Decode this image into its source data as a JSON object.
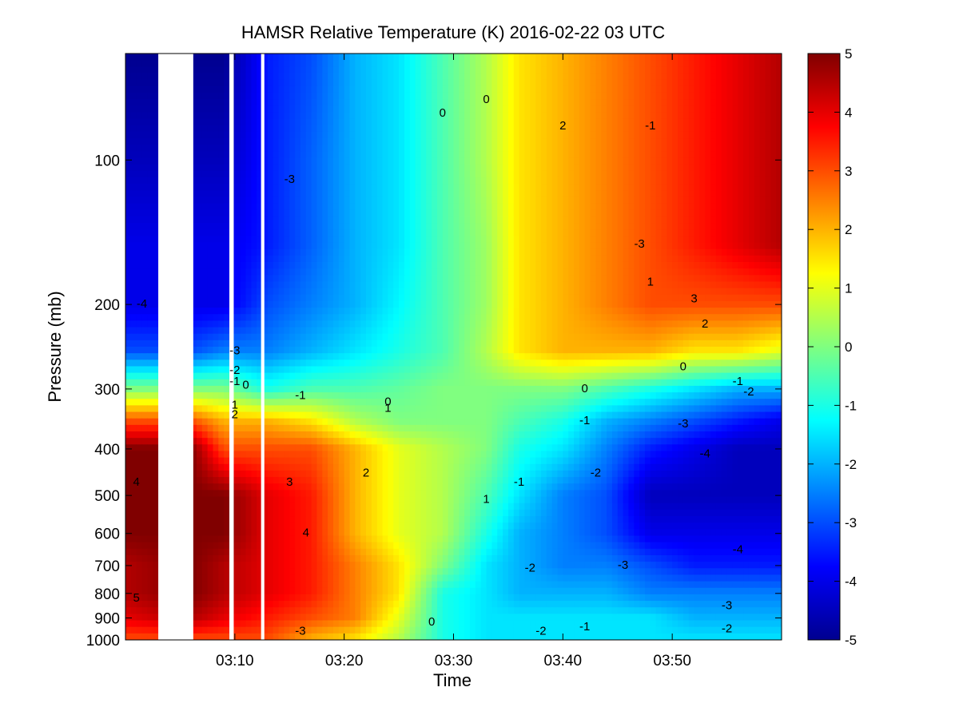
{
  "chart_data": {
    "type": "heatmap",
    "title": "HAMSR  Relative Temperature (K) 2016-02-22 03 UTC",
    "xlabel": "Time",
    "ylabel": "Pressure (mb)",
    "x_tick_labels": [
      "03:10",
      "03:20",
      "03:30",
      "03:40",
      "03:50"
    ],
    "x_tick_minutes": [
      10,
      20,
      30,
      40,
      50
    ],
    "xlim_minutes": [
      0,
      60
    ],
    "y_scale": "log",
    "y_reversed": true,
    "ylim": [
      60,
      1000
    ],
    "y_tick_labels": [
      "100",
      "200",
      "300",
      "400",
      "500",
      "600",
      "700",
      "800",
      "900",
      "1000"
    ],
    "y_tick_values": [
      100,
      200,
      300,
      400,
      500,
      600,
      700,
      800,
      900,
      1000
    ],
    "colorbar": {
      "range": [
        -5,
        5
      ],
      "tick_labels": [
        "5",
        "4",
        "3",
        "2",
        "1",
        "0",
        "-1",
        "-2",
        "-3",
        "-4",
        "-5"
      ],
      "tick_values": [
        5,
        4,
        3,
        2,
        1,
        0,
        -1,
        -2,
        -3,
        -4,
        -5
      ],
      "colormap": "jet",
      "stops": [
        "#00008f",
        "#0000ff",
        "#00ffff",
        "#ffff00",
        "#ff0000",
        "#800000"
      ]
    },
    "data_gaps_minutes": [
      [
        3,
        6.2
      ],
      [
        9.5,
        9.9
      ],
      [
        12.4,
        12.7
      ]
    ],
    "field": {
      "pressure_levels": [
        60,
        100,
        150,
        200,
        250,
        300,
        350,
        400,
        500,
        600,
        700,
        800,
        900,
        1000
      ],
      "time_minutes": [
        0,
        6,
        9,
        13,
        17,
        21,
        25,
        29,
        33,
        36,
        40,
        44,
        48,
        52,
        56,
        60
      ],
      "relative_temperature_K": [
        [
          -5,
          -5,
          -5,
          -3.5,
          -3,
          -2,
          -1.5,
          -0.5,
          0.5,
          1.5,
          2,
          2.5,
          3,
          3.5,
          4,
          4.5
        ],
        [
          -4.5,
          -4.5,
          -4.5,
          -3.5,
          -2.8,
          -2,
          -1.5,
          -0.5,
          0.5,
          1.5,
          2,
          2.5,
          3,
          3.5,
          4,
          4.5
        ],
        [
          -4,
          -4,
          -4,
          -3.5,
          -2.8,
          -2,
          -1.5,
          -0.5,
          0.3,
          1.5,
          2,
          2.5,
          3,
          3.5,
          4,
          4.5
        ],
        [
          -4,
          -4,
          -4,
          -3,
          -2.5,
          -2,
          -1.3,
          -0.5,
          0.3,
          1.5,
          2,
          2.5,
          3,
          3,
          3,
          3
        ],
        [
          -3,
          -3,
          -2.5,
          -2.5,
          -2,
          -1.5,
          -1,
          -0.5,
          0.5,
          1.5,
          2,
          2,
          2,
          1.5,
          1.5,
          1
        ],
        [
          0,
          0,
          0,
          -1,
          -0.5,
          -0.5,
          -0.3,
          0,
          0,
          0,
          0,
          -0.5,
          -1,
          -1.5,
          -2,
          -2
        ],
        [
          3,
          3,
          2,
          2,
          1.5,
          0.5,
          0,
          0,
          0,
          -0.5,
          -1,
          -2,
          -2.5,
          -3,
          -3.5,
          -4
        ],
        [
          5,
          5,
          3,
          3,
          3,
          2,
          1,
          0.5,
          0,
          -1,
          -1.5,
          -2.5,
          -3.5,
          -4,
          -4.5,
          -4.5
        ],
        [
          5,
          5,
          5,
          4,
          3.5,
          2,
          1,
          0.5,
          -0.5,
          -1.5,
          -2.5,
          -3,
          -4.5,
          -4.5,
          -4.5,
          -4.5
        ],
        [
          5,
          5,
          5,
          4,
          3.5,
          2,
          1,
          0.5,
          -1,
          -2,
          -2.5,
          -3,
          -4,
          -4,
          -4,
          -4
        ],
        [
          4.5,
          5,
          4.5,
          4,
          3.5,
          2.5,
          1.5,
          0,
          -1.5,
          -2,
          -2.5,
          -2.5,
          -3,
          -3.5,
          -3.5,
          -3.5
        ],
        [
          4.5,
          5,
          4.5,
          4,
          3.5,
          2.5,
          1.5,
          -1,
          -1.5,
          -2,
          -2,
          -2,
          -2.5,
          -2.5,
          -2.5,
          -2.5
        ],
        [
          4,
          4.5,
          4,
          3.5,
          3,
          2.5,
          1,
          -1,
          -1.5,
          -1.5,
          -1.5,
          -1.5,
          -1.5,
          -2,
          -2,
          -2
        ],
        [
          3,
          3,
          3,
          3,
          2,
          1.5,
          0.5,
          -1,
          -1.5,
          -1.5,
          -1.5,
          -1.5,
          -1.5,
          -1.5,
          -1.5,
          -1.5
        ]
      ]
    },
    "contour_labels": [
      {
        "text": "-3",
        "t": 10,
        "p": 250
      },
      {
        "text": "-2",
        "t": 10,
        "p": 275
      },
      {
        "text": "-1",
        "t": 10,
        "p": 290
      },
      {
        "text": "0",
        "t": 11,
        "p": 295
      },
      {
        "text": "1",
        "t": 10,
        "p": 325
      },
      {
        "text": "2",
        "t": 10,
        "p": 340
      },
      {
        "text": "3",
        "t": 15,
        "p": 470
      },
      {
        "text": "4",
        "t": 16.5,
        "p": 600
      },
      {
        "text": "-4",
        "t": 1.5,
        "p": 200
      },
      {
        "text": "4",
        "t": 1,
        "p": 470
      },
      {
        "text": "5",
        "t": 1,
        "p": 820
      },
      {
        "text": "-3",
        "t": 15,
        "p": 110
      },
      {
        "text": "2",
        "t": 22,
        "p": 450
      },
      {
        "text": "1",
        "t": 24,
        "p": 330
      },
      {
        "text": "0",
        "t": 24,
        "p": 320
      },
      {
        "text": "-1",
        "t": 16,
        "p": 310
      },
      {
        "text": "0",
        "t": 29,
        "p": 80
      },
      {
        "text": "0",
        "t": 33,
        "p": 75
      },
      {
        "text": "1",
        "t": 33,
        "p": 510
      },
      {
        "text": "-1",
        "t": 36,
        "p": 470
      },
      {
        "text": "-2",
        "t": 37,
        "p": 710
      },
      {
        "text": "-2",
        "t": 43,
        "p": 450
      },
      {
        "text": "-1",
        "t": 42,
        "p": 350
      },
      {
        "text": "0",
        "t": 42,
        "p": 300
      },
      {
        "text": "2",
        "t": 40,
        "p": 85
      },
      {
        "text": "-1",
        "t": 48,
        "p": 85
      },
      {
        "text": "-3",
        "t": 47,
        "p": 150
      },
      {
        "text": "1",
        "t": 48,
        "p": 180
      },
      {
        "text": "3",
        "t": 52,
        "p": 195
      },
      {
        "text": "2",
        "t": 53,
        "p": 220
      },
      {
        "text": "0",
        "t": 51,
        "p": 270
      },
      {
        "text": "-1",
        "t": 56,
        "p": 290
      },
      {
        "text": "-2",
        "t": 57,
        "p": 305
      },
      {
        "text": "-3",
        "t": 51,
        "p": 355
      },
      {
        "text": "-4",
        "t": 53,
        "p": 410
      },
      {
        "text": "-4",
        "t": 56,
        "p": 650
      },
      {
        "text": "-3",
        "t": 45.5,
        "p": 700
      },
      {
        "text": "-3",
        "t": 55,
        "p": 850
      },
      {
        "text": "-2",
        "t": 55,
        "p": 950
      },
      {
        "text": "-3",
        "t": 16,
        "p": 960
      },
      {
        "text": "0",
        "t": 28,
        "p": 920
      },
      {
        "text": "-1",
        "t": 42,
        "p": 940
      },
      {
        "text": "-2",
        "t": 38,
        "p": 960
      }
    ]
  }
}
